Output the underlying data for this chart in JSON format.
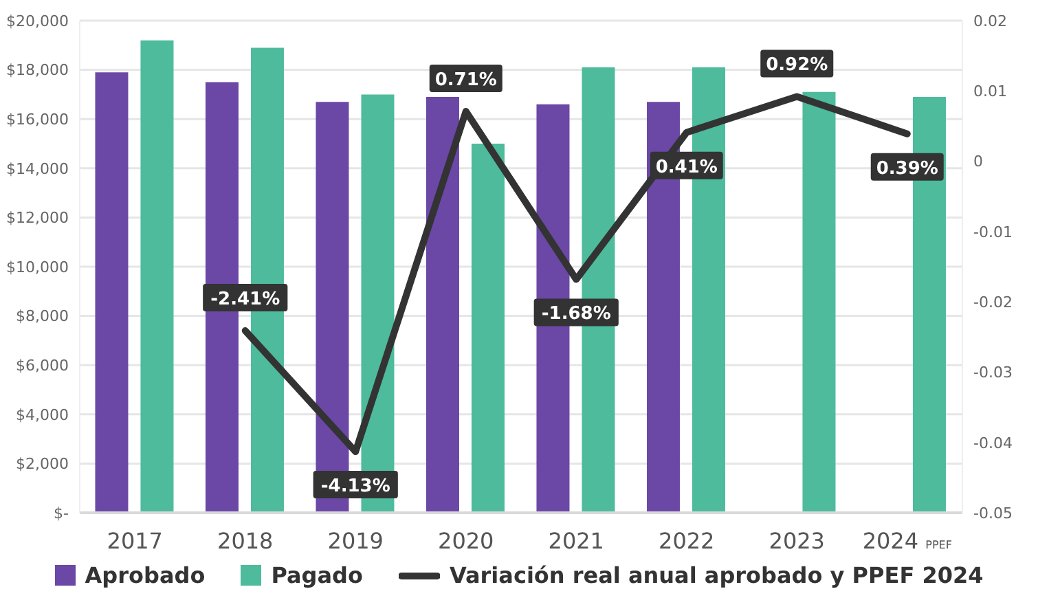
{
  "chart_data": {
    "type": "bar",
    "categories": [
      "2017",
      "2018",
      "2019",
      "2020",
      "2021",
      "2022",
      "2023",
      "2024 PPEF"
    ],
    "series": [
      {
        "name": "Aprobado",
        "color": "#6b47a6",
        "values": [
          17900,
          17500,
          16700,
          16900,
          16600,
          16700,
          null,
          null
        ]
      },
      {
        "name": "Pagado",
        "color": "#4dbb9c",
        "values": [
          19200,
          18900,
          17000,
          15000,
          18100,
          18100,
          17100,
          16900
        ]
      },
      {
        "name": "Variación real anual aprobado y PPEF 2024",
        "type": "line",
        "axis": "y2",
        "color": "#333333",
        "values": [
          null,
          -0.0241,
          -0.0413,
          0.0071,
          -0.0168,
          0.0041,
          0.0092,
          0.0039
        ],
        "value_labels": [
          null,
          "-2.41%",
          "-4.13%",
          "0.71%",
          "-1.68%",
          "0.41%",
          "0.92%",
          "0.39%"
        ]
      }
    ],
    "ylim": [
      0,
      20000
    ],
    "yticks": [
      {
        "value": 0,
        "label": "$-"
      },
      {
        "value": 2000,
        "label": "$2,000"
      },
      {
        "value": 4000,
        "label": "$4,000"
      },
      {
        "value": 6000,
        "label": "$6,000"
      },
      {
        "value": 8000,
        "label": "$8,000"
      },
      {
        "value": 10000,
        "label": "$10,000"
      },
      {
        "value": 12000,
        "label": "$12,000"
      },
      {
        "value": 14000,
        "label": "$14,000"
      },
      {
        "value": 16000,
        "label": "$16,000"
      },
      {
        "value": 18000,
        "label": "$18,000"
      },
      {
        "value": 20000,
        "label": "$20,000"
      }
    ],
    "y2lim": [
      -0.05,
      0.02
    ],
    "y2ticks": [
      -0.05,
      -0.04,
      -0.03,
      -0.02,
      -0.01,
      0,
      0.01,
      0.02
    ],
    "grid": "y",
    "legend": "bottom",
    "marker": "none",
    "line_style": "solid"
  }
}
